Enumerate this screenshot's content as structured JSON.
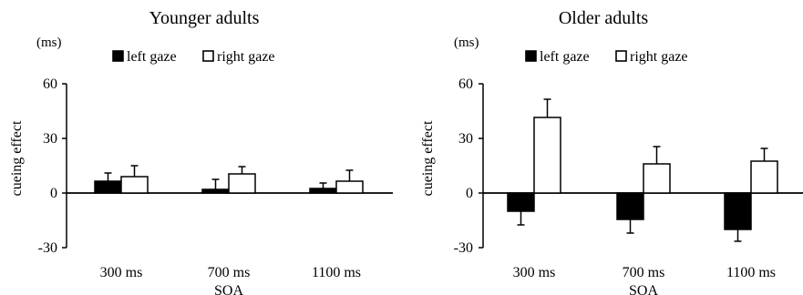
{
  "chart_data": [
    {
      "type": "bar",
      "title": "Younger adults",
      "unit_label": "(ms)",
      "ylabel": "cueing effect",
      "xlabel": "",
      "ylim": [
        -30,
        60
      ],
      "yticks": [
        -30,
        0,
        30,
        60
      ],
      "categories": [
        "300 ms",
        "700 ms",
        "1100 ms"
      ],
      "legend": "top",
      "series": [
        {
          "name": "left gaze",
          "color": "#000000",
          "values": [
            6.5,
            2,
            2.5
          ],
          "errors": [
            4.5,
            5.5,
            3
          ]
        },
        {
          "name": "right gaze",
          "color": "#ffffff",
          "values": [
            9,
            10.5,
            6.5
          ],
          "errors": [
            6,
            4,
            6
          ]
        }
      ]
    },
    {
      "type": "bar",
      "title": "Older adults",
      "unit_label": "(ms)",
      "ylabel": "cueing effect",
      "xlabel": "SOA",
      "ylim": [
        -30,
        60
      ],
      "yticks": [
        -30,
        0,
        30,
        60
      ],
      "categories": [
        "300 ms",
        "700 ms",
        "1100 ms"
      ],
      "legend": "top",
      "series": [
        {
          "name": "left gaze",
          "color": "#000000",
          "values": [
            -10,
            -14.5,
            -20
          ],
          "errors": [
            7.5,
            7.5,
            6.5
          ]
        },
        {
          "name": "right gaze",
          "color": "#ffffff",
          "values": [
            41.5,
            16,
            17.5
          ],
          "errors": [
            10,
            9.5,
            7
          ]
        }
      ]
    }
  ],
  "shared_xlabel_left": "SOA"
}
